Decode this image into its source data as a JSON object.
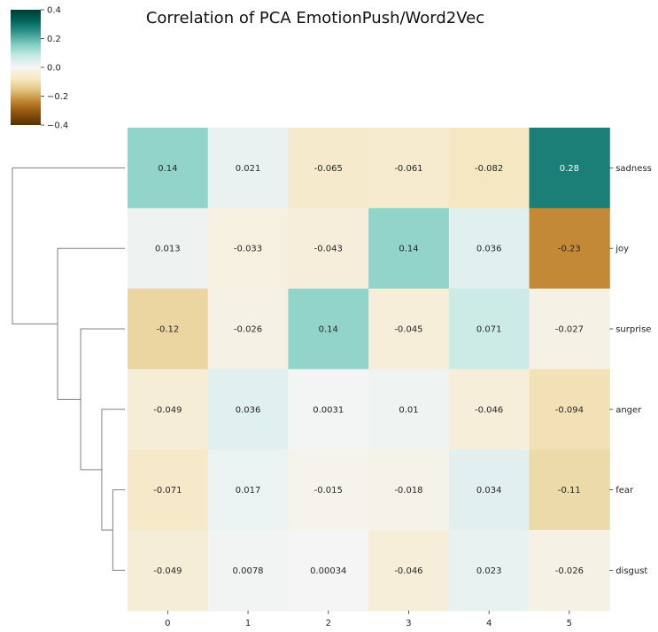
{
  "chart_data": {
    "type": "heatmap",
    "title": "Correlation of PCA EmotionPush/Word2Vec",
    "columns": [
      "0",
      "1",
      "2",
      "3",
      "4",
      "5"
    ],
    "rows": [
      "sadness",
      "joy",
      "surprise",
      "anger",
      "fear",
      "disgust"
    ],
    "values": [
      [
        0.14,
        0.021,
        -0.065,
        -0.061,
        -0.082,
        0.28
      ],
      [
        0.013,
        -0.033,
        -0.043,
        0.14,
        0.036,
        -0.23
      ],
      [
        -0.12,
        -0.026,
        0.14,
        -0.045,
        0.071,
        -0.027
      ],
      [
        -0.049,
        0.036,
        0.0031,
        0.01,
        -0.046,
        -0.094
      ],
      [
        -0.071,
        0.017,
        -0.015,
        -0.018,
        0.034,
        -0.11
      ],
      [
        -0.049,
        0.0078,
        0.00034,
        -0.046,
        0.023,
        -0.026
      ]
    ],
    "cell_labels": [
      [
        "0.14",
        "0.021",
        "-0.065",
        "-0.061",
        "-0.082",
        "0.28"
      ],
      [
        "0.013",
        "-0.033",
        "-0.043",
        "0.14",
        "0.036",
        "-0.23"
      ],
      [
        "-0.12",
        "-0.026",
        "0.14",
        "-0.045",
        "0.071",
        "-0.027"
      ],
      [
        "-0.049",
        "0.036",
        "0.0031",
        "0.01",
        "-0.046",
        "-0.094"
      ],
      [
        "-0.071",
        "0.017",
        "-0.015",
        "-0.018",
        "0.034",
        "-0.11"
      ],
      [
        "-0.049",
        "0.0078",
        "0.00034",
        "-0.046",
        "0.023",
        "-0.026"
      ]
    ],
    "colorbar": {
      "range": [
        -0.4,
        0.4
      ],
      "ticks": [
        0.4,
        0.2,
        0.0,
        -0.2,
        -0.4
      ],
      "tick_labels": [
        "0.4",
        "0.2",
        "0.0",
        "−0.2",
        "−0.4"
      ],
      "colormap": "BrBG",
      "placement": "top-left"
    },
    "row_dendrogram": {
      "side": "left",
      "merges": [
        {
          "a": "leaf:4",
          "b": "leaf:5",
          "height": 0.06
        },
        {
          "a": "leaf:3",
          "b": "node:0",
          "height": 0.115
        },
        {
          "a": "leaf:2",
          "b": "node:1",
          "height": 0.22
        },
        {
          "a": "leaf:1",
          "b": "node:2",
          "height": 0.335
        },
        {
          "a": "leaf:0",
          "b": "node:3",
          "height": 0.56
        }
      ],
      "line_color": "#808080"
    },
    "grid": false
  }
}
